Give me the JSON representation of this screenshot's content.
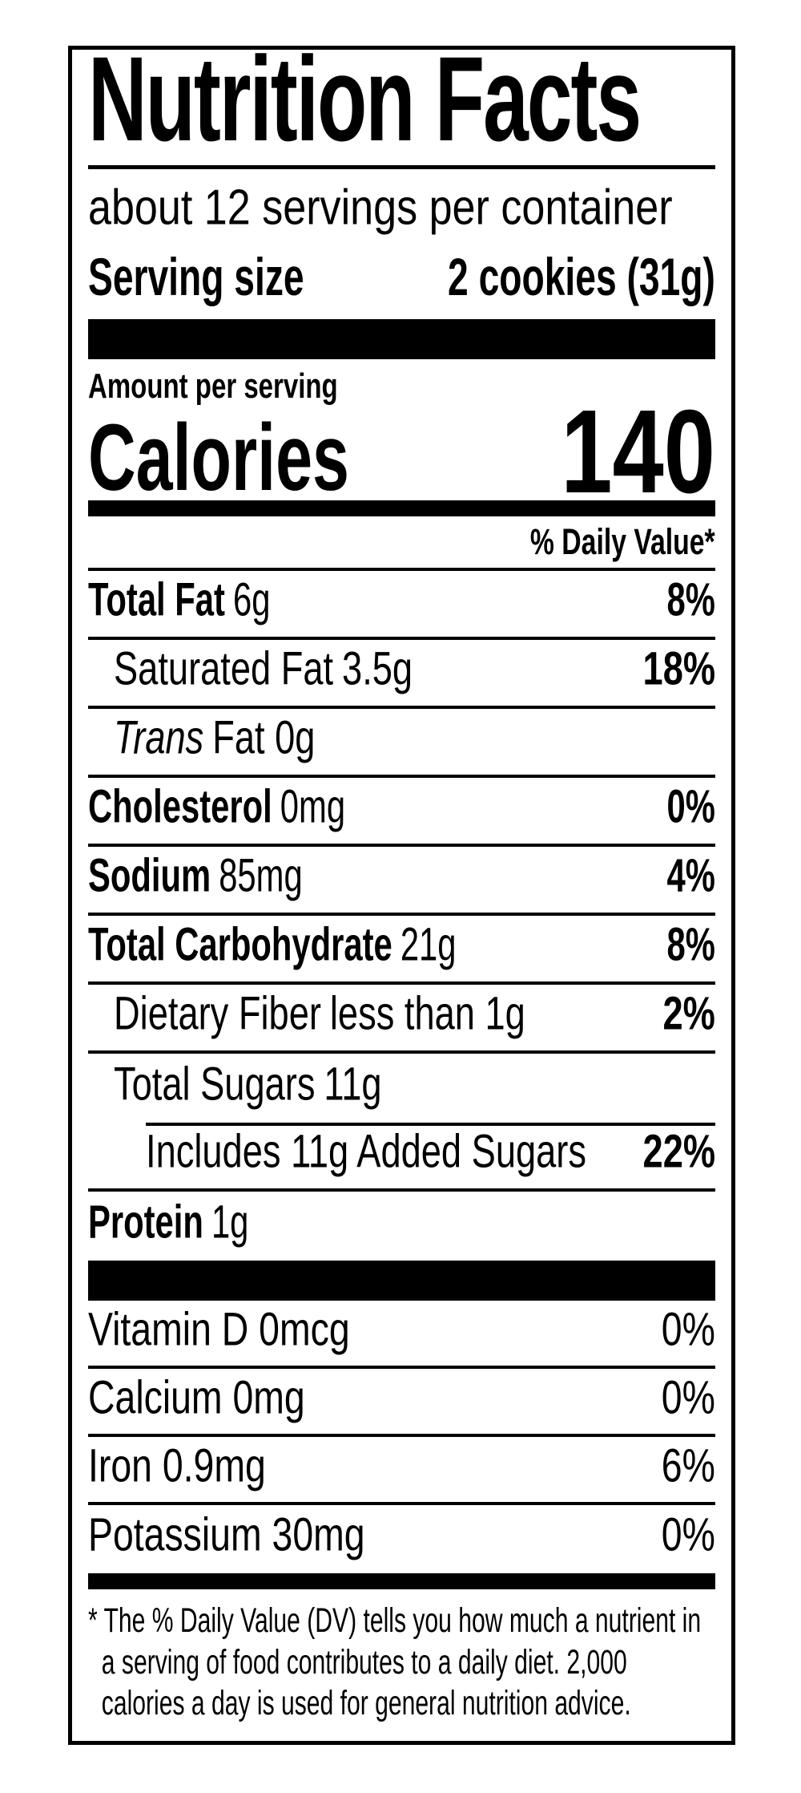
{
  "title": "Nutrition Facts",
  "servings_per_container": "about 12 servings per container",
  "serving_size_label": "Serving size",
  "serving_size_value": "2 cookies (31g)",
  "amount_per_serving": "Amount per serving",
  "calories_label": "Calories",
  "calories_value": "140",
  "daily_value_header": "% Daily Value*",
  "nutrients": [
    {
      "name": "Total Fat",
      "amount": "6g",
      "dv": "8%"
    },
    {
      "name": "Saturated Fat",
      "amount": "3.5g",
      "dv": "18%"
    },
    {
      "name": "Trans",
      "amount": "Fat 0g",
      "dv": ""
    },
    {
      "name": "Cholesterol",
      "amount": "0mg",
      "dv": "0%"
    },
    {
      "name": "Sodium",
      "amount": "85mg",
      "dv": "4%"
    },
    {
      "name": "Total Carbohydrate",
      "amount": "21g",
      "dv": "8%"
    },
    {
      "name": "Dietary Fiber",
      "amount": "less than 1g",
      "dv": "2%"
    },
    {
      "name": "Total Sugars",
      "amount": "11g",
      "dv": ""
    },
    {
      "name": "Includes 11g Added Sugars",
      "amount": "",
      "dv": "22%"
    },
    {
      "name": "Protein",
      "amount": "1g",
      "dv": ""
    }
  ],
  "vitamins": [
    {
      "name": "Vitamin D 0mcg",
      "dv": "0%"
    },
    {
      "name": "Calcium 0mg",
      "dv": "0%"
    },
    {
      "name": "Iron 0.9mg",
      "dv": "6%"
    },
    {
      "name": "Potassium 30mg",
      "dv": "0%"
    }
  ],
  "footnote": "* The % Daily Value (DV) tells you how much a nutrient in a serving of food contributes to a daily diet. 2,000 calories a day is used for general nutrition advice.",
  "colors": {
    "ink": "#000000",
    "background": "#ffffff"
  }
}
